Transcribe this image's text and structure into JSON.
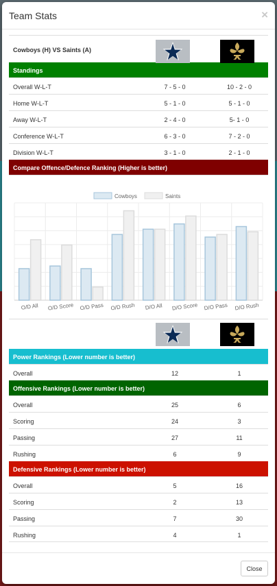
{
  "modal": {
    "title": "Team Stats",
    "close_glyph": "×",
    "footer_close_label": "Close"
  },
  "matchup": {
    "text": "Cowboys (H) VS Saints (A)",
    "home_logo": "cowboys-star-logo",
    "away_logo": "saints-fleur-de-lis-logo"
  },
  "colors": {
    "standings": "#008000",
    "compare": "#7f0000",
    "power": "#17becf",
    "offense": "#006400",
    "defense": "#cc1100"
  },
  "standings": {
    "title": "Standings",
    "rows": [
      {
        "label": "Overall W-L-T",
        "home": "7 - 5 - 0",
        "away": "10 - 2 - 0"
      },
      {
        "label": "Home W-L-T",
        "home": "5 - 1 - 0",
        "away": "5 - 1 - 0"
      },
      {
        "label": "Away W-L-T",
        "home": "2 - 4 - 0",
        "away": "5- 1 - 0"
      },
      {
        "label": "Conference W-L-T",
        "home": "6 - 3 - 0",
        "away": "7 - 2 - 0"
      },
      {
        "label": "Division W-L-T",
        "home": "3 - 1 - 0",
        "away": "2 - 1 - 0"
      }
    ]
  },
  "compare": {
    "title": "Compare Offence/Defence Ranking (Higher is better)"
  },
  "chart_data": {
    "type": "bar",
    "categories": [
      "O/D All",
      "O/D Score",
      "O/D Pass",
      "O/D Rush",
      "D/O All",
      "D/O Score",
      "D/O Pass",
      "D/O Rush"
    ],
    "series": [
      {
        "name": "Cowboys",
        "values": [
          12,
          13,
          12,
          25,
          27,
          29,
          24,
          28
        ],
        "fill": "#dce9f2",
        "stroke": "#a7c6dc"
      },
      {
        "name": "Saints",
        "values": [
          23,
          21,
          5,
          34,
          27,
          32,
          25,
          26
        ],
        "fill": "#f0f0f0",
        "stroke": "#dcdcdc"
      }
    ],
    "ylim": [
      0,
      37
    ],
    "legend": "top",
    "grid": true
  },
  "power": {
    "title": "Power Rankings (Lower number is better)",
    "rows": [
      {
        "label": "Overall",
        "home": "12",
        "away": "1"
      }
    ]
  },
  "offense": {
    "title": "Offensive Rankings (Lower number is better)",
    "rows": [
      {
        "label": "Overall",
        "home": "25",
        "away": "6"
      },
      {
        "label": "Scoring",
        "home": "24",
        "away": "3"
      },
      {
        "label": "Passing",
        "home": "27",
        "away": "11"
      },
      {
        "label": "Rushing",
        "home": "6",
        "away": "9"
      }
    ]
  },
  "defense": {
    "title": "Defensive Rankings (Lower number is better)",
    "rows": [
      {
        "label": "Overall",
        "home": "5",
        "away": "16"
      },
      {
        "label": "Scoring",
        "home": "2",
        "away": "13"
      },
      {
        "label": "Passing",
        "home": "7",
        "away": "30"
      },
      {
        "label": "Rushing",
        "home": "4",
        "away": "1"
      }
    ]
  }
}
